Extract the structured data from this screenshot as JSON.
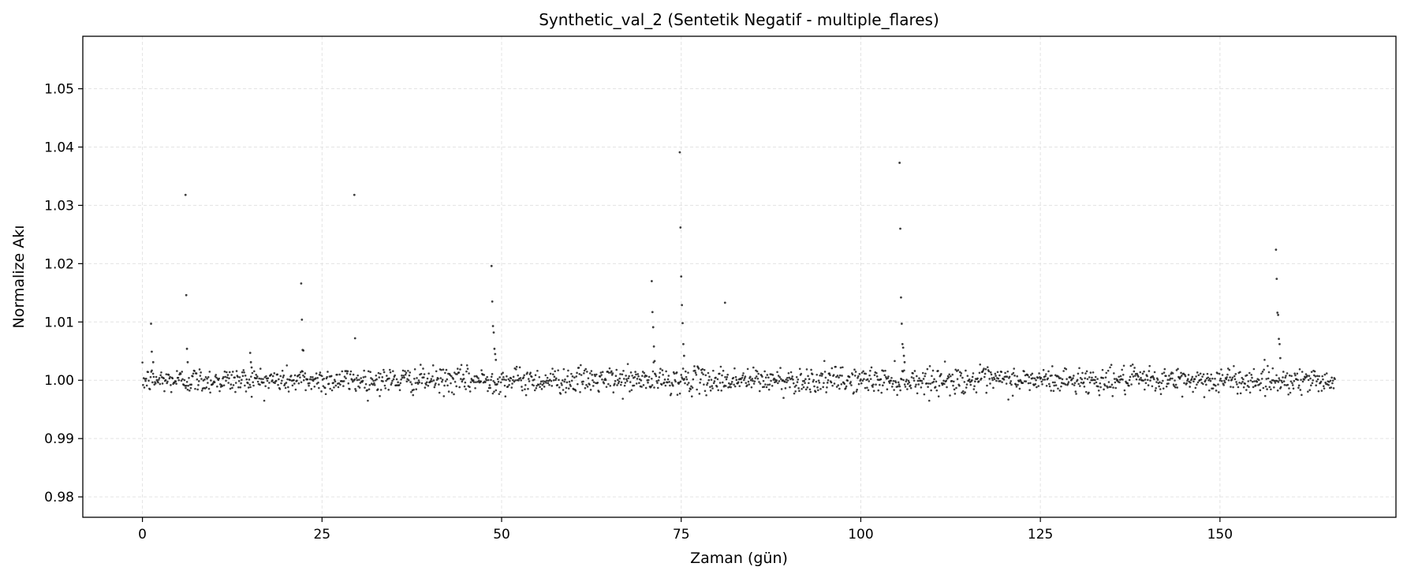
{
  "chart_data": {
    "type": "scatter",
    "title": "Synthetic_val_2 (Sentetik Negatif - multiple_flares)",
    "xlabel": "Zaman (gün)",
    "ylabel": "Normalize Akı",
    "xlim": [
      -8.3,
      174.5
    ],
    "ylim": [
      0.9765,
      1.059
    ],
    "xticks": [
      0,
      25,
      50,
      75,
      100,
      125,
      150
    ],
    "yticks": [
      0.98,
      0.99,
      1.0,
      1.01,
      1.02,
      1.03,
      1.04,
      1.05
    ],
    "xtick_labels": [
      "0",
      "25",
      "50",
      "75",
      "100",
      "125",
      "150"
    ],
    "ytick_labels": [
      "0.98",
      "0.99",
      "1.00",
      "1.01",
      "1.02",
      "1.03",
      "1.04",
      "1.05"
    ],
    "grid": true,
    "baseline": {
      "x_start": 0,
      "x_end": 166,
      "n_points": 1900,
      "center": 1.0,
      "scatter": 0.0011,
      "min": 0.9965,
      "max": 1.0035
    },
    "series": [
      {
        "values": [
          [
            1.2,
            1.0097
          ],
          [
            1.3,
            1.0049
          ],
          [
            1.5,
            1.0031
          ],
          [
            6.0,
            1.0318
          ],
          [
            6.1,
            1.0146
          ],
          [
            6.2,
            1.0054
          ],
          [
            6.3,
            1.0031
          ],
          [
            15.0,
            1.0047
          ],
          [
            15.1,
            1.0031
          ],
          [
            15.2,
            1.0022
          ],
          [
            22.1,
            1.0166
          ],
          [
            22.2,
            1.0104
          ],
          [
            22.3,
            1.0052
          ],
          [
            22.4,
            1.0051
          ],
          [
            29.5,
            1.0318
          ],
          [
            29.6,
            1.0072
          ],
          [
            48.6,
            1.0196
          ],
          [
            48.7,
            1.0135
          ],
          [
            48.8,
            1.0093
          ],
          [
            48.9,
            1.0082
          ],
          [
            49.0,
            1.0054
          ],
          [
            49.1,
            1.0045
          ],
          [
            49.2,
            1.0035
          ],
          [
            70.9,
            1.017
          ],
          [
            71.0,
            1.0117
          ],
          [
            71.1,
            1.0091
          ],
          [
            71.2,
            1.0058
          ],
          [
            71.3,
            1.0033
          ],
          [
            74.8,
            1.0391
          ],
          [
            74.9,
            1.0262
          ],
          [
            75.0,
            1.0178
          ],
          [
            75.1,
            1.0129
          ],
          [
            75.2,
            1.0098
          ],
          [
            75.3,
            1.0062
          ],
          [
            75.4,
            1.0042
          ],
          [
            81.1,
            1.0133
          ],
          [
            105.4,
            1.0373
          ],
          [
            105.5,
            1.026
          ],
          [
            105.6,
            1.0142
          ],
          [
            105.7,
            1.0097
          ],
          [
            105.8,
            1.0062
          ],
          [
            105.9,
            1.0056
          ],
          [
            106.0,
            1.0042
          ],
          [
            106.1,
            1.0031
          ],
          [
            157.8,
            1.0224
          ],
          [
            157.9,
            1.0174
          ],
          [
            158.0,
            1.0116
          ],
          [
            158.1,
            1.0112
          ],
          [
            158.2,
            1.0071
          ],
          [
            158.3,
            1.0062
          ],
          [
            158.4,
            1.0038
          ]
        ]
      }
    ]
  }
}
